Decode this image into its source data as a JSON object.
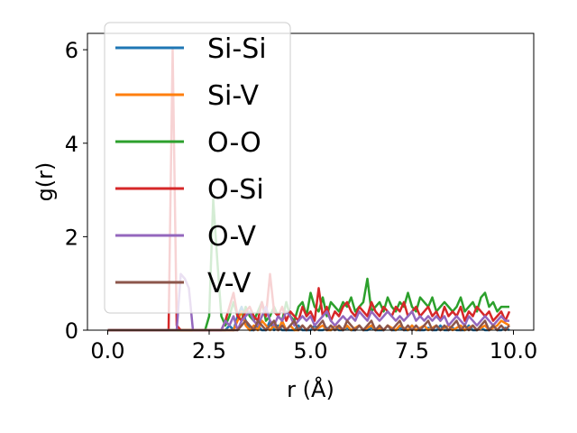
{
  "chart_data": {
    "type": "line",
    "xlabel": "r (Å)",
    "ylabel": "g(r)",
    "xlim": [
      -0.5,
      10.5
    ],
    "ylim": [
      0,
      6.35
    ],
    "grid": false,
    "legend_placement": "top-left",
    "x_ticks": [
      0.0,
      2.5,
      5.0,
      7.5,
      10.0
    ],
    "x_tick_labels": [
      "0.0",
      "2.5",
      "5.0",
      "7.5",
      "10.0"
    ],
    "y_ticks": [
      0,
      2,
      4,
      6
    ],
    "y_tick_labels": [
      "0",
      "2",
      "4",
      "6"
    ],
    "x": [
      0.0,
      0.1,
      0.2,
      0.3,
      0.4,
      0.5,
      0.6,
      0.7,
      0.8,
      0.9,
      1.0,
      1.1,
      1.2,
      1.3,
      1.4,
      1.5,
      1.6,
      1.7,
      1.8,
      1.9,
      2.0,
      2.1,
      2.2,
      2.3,
      2.4,
      2.5,
      2.6,
      2.7,
      2.8,
      2.9,
      3.0,
      3.1,
      3.2,
      3.3,
      3.4,
      3.5,
      3.6,
      3.7,
      3.8,
      3.9,
      4.0,
      4.1,
      4.2,
      4.3,
      4.4,
      4.5,
      4.6,
      4.7,
      4.8,
      4.9,
      5.0,
      5.1,
      5.2,
      5.3,
      5.4,
      5.5,
      5.6,
      5.7,
      5.8,
      5.9,
      6.0,
      6.1,
      6.2,
      6.3,
      6.4,
      6.5,
      6.6,
      6.7,
      6.8,
      6.9,
      7.0,
      7.1,
      7.2,
      7.3,
      7.4,
      7.5,
      7.6,
      7.7,
      7.8,
      7.9,
      8.0,
      8.1,
      8.2,
      8.3,
      8.4,
      8.5,
      8.6,
      8.7,
      8.8,
      8.9,
      9.0,
      9.1,
      9.2,
      9.3,
      9.4,
      9.5,
      9.6,
      9.7,
      9.8,
      9.9
    ],
    "series": [
      {
        "name": "Si-Si",
        "color": "#1f77b4",
        "values": [
          0,
          0,
          0,
          0,
          0,
          0,
          0,
          0,
          0,
          0,
          0,
          0,
          0,
          0,
          0,
          0,
          0,
          0,
          0,
          0,
          0,
          0,
          0,
          0,
          0,
          0,
          0,
          0,
          0,
          0,
          0.1,
          0.0,
          0.3,
          0.5,
          0.2,
          0.0,
          0.0,
          0.1,
          0.0,
          0.0,
          0.2,
          0.0,
          0.1,
          0.0,
          0.0,
          0.0,
          0.0,
          0.1,
          0.0,
          0.0,
          0.0,
          0.1,
          0.0,
          0.0,
          0.05,
          0.0,
          0.1,
          0.0,
          0.0,
          0.05,
          0.0,
          0.0,
          0.1,
          0.0,
          0.0,
          0.05,
          0.0,
          0.0,
          0.0,
          0.1,
          0.0,
          0.0,
          0.05,
          0.0,
          0.0,
          0.1,
          0.0,
          0.0,
          0.0,
          0.05,
          0.0,
          0.0,
          0.1,
          0.0,
          0.0,
          0.05,
          0.0,
          0.0,
          0.0,
          0.1,
          0.0,
          0.0,
          0.05,
          0.0,
          0.0,
          0.1,
          0.0,
          0.0,
          0.05,
          0.0
        ]
      },
      {
        "name": "Si-V",
        "color": "#ff7f0e",
        "values": [
          0,
          0,
          0,
          0,
          0,
          0,
          0,
          0,
          0,
          0,
          0,
          0,
          0,
          0,
          0,
          0,
          0,
          0,
          0,
          0,
          0,
          0,
          0,
          0,
          0,
          0,
          0,
          0,
          0,
          0,
          0,
          0,
          0.2,
          0.4,
          0.1,
          0.0,
          0.1,
          0.0,
          0.2,
          0.1,
          0.0,
          0.1,
          0.0,
          0.2,
          0.0,
          0.1,
          0.0,
          0.0,
          0.1,
          0.0,
          0.1,
          0.0,
          0.05,
          0.1,
          0.0,
          0.0,
          0.1,
          0.05,
          0.0,
          0.1,
          0.0,
          0.05,
          0.1,
          0.0,
          0.05,
          0.1,
          0.0,
          0.05,
          0.0,
          0.1,
          0.05,
          0.0,
          0.1,
          0.05,
          0.0,
          0.1,
          0.0,
          0.05,
          0.1,
          0.0,
          0.05,
          0.1,
          0.0,
          0.05,
          0.1,
          0.0,
          0.05,
          0.1,
          0.0,
          0.05,
          0.1,
          0.0,
          0.05,
          0.1,
          0.0,
          0.05,
          0.1,
          0.2,
          0.15,
          0.1
        ]
      },
      {
        "name": "O-O",
        "color": "#2ca02c",
        "values": [
          0,
          0,
          0,
          0,
          0,
          0,
          0,
          0,
          0,
          0,
          0,
          0,
          0,
          0,
          0,
          0,
          0,
          0,
          0,
          0,
          0,
          0,
          0,
          0,
          0,
          0.3,
          2.8,
          1.5,
          0.3,
          0.1,
          0.3,
          0.6,
          0.3,
          0.2,
          0.5,
          0.3,
          0.2,
          0.4,
          0.6,
          0.2,
          0.3,
          0.5,
          0.3,
          0.2,
          0.6,
          0.3,
          0.2,
          0.5,
          0.6,
          0.3,
          0.8,
          0.5,
          0.4,
          0.7,
          0.3,
          0.6,
          0.5,
          0.4,
          0.6,
          0.5,
          0.7,
          0.4,
          0.5,
          0.6,
          1.1,
          0.4,
          0.5,
          0.6,
          0.4,
          0.7,
          0.5,
          0.4,
          0.6,
          0.5,
          0.8,
          0.5,
          0.4,
          0.7,
          0.6,
          0.5,
          0.7,
          0.4,
          0.5,
          0.6,
          0.5,
          0.4,
          0.5,
          0.7,
          0.4,
          0.5,
          0.6,
          0.4,
          0.7,
          0.8,
          0.5,
          0.6,
          0.4,
          0.5,
          0.5,
          0.5
        ]
      },
      {
        "name": "O-Si",
        "color": "#d62728",
        "values": [
          0,
          0,
          0,
          0,
          0,
          0,
          0,
          0,
          0,
          0,
          0,
          0,
          0,
          0,
          0,
          0,
          6.0,
          0.1,
          0,
          0,
          0,
          0,
          0,
          0,
          0,
          0,
          0,
          0,
          0,
          0.2,
          0.5,
          0.8,
          0.3,
          0.2,
          0.4,
          0.5,
          0.3,
          0.2,
          0.6,
          0.3,
          1.2,
          0.4,
          0.3,
          0.5,
          0.2,
          0.4,
          0.3,
          0.2,
          0.5,
          0.3,
          0.4,
          0.2,
          0.9,
          0.3,
          0.5,
          0.2,
          0.4,
          0.3,
          0.5,
          0.6,
          0.4,
          0.3,
          0.5,
          0.4,
          0.3,
          0.6,
          0.4,
          0.3,
          0.5,
          0.4,
          0.3,
          0.5,
          0.4,
          0.6,
          0.3,
          0.4,
          0.5,
          0.3,
          0.4,
          0.5,
          0.3,
          0.4,
          0.2,
          0.5,
          0.3,
          0.4,
          0.3,
          0.5,
          0.2,
          0.4,
          0.3,
          0.5,
          0.4,
          0.3,
          0.4,
          0.2,
          0.3,
          0.4,
          0.2,
          0.4
        ]
      },
      {
        "name": "O-V",
        "color": "#9467bd",
        "values": [
          0,
          0,
          0,
          0,
          0,
          0,
          0,
          0,
          0,
          0,
          0,
          0,
          0,
          0,
          0,
          0,
          0,
          0,
          1.2,
          1.1,
          0.9,
          0,
          0,
          0,
          0,
          0,
          0,
          0,
          0,
          0.2,
          0.1,
          0.3,
          0.0,
          0.2,
          0.3,
          0.4,
          0.2,
          0.1,
          0.3,
          0.5,
          0.2,
          0.1,
          0.3,
          0.2,
          0.4,
          0.3,
          0.1,
          0.2,
          0.3,
          0.2,
          0.3,
          0.1,
          0.2,
          0.3,
          0.4,
          0.2,
          0.1,
          0.2,
          0.3,
          0.2,
          0.3,
          0.2,
          0.4,
          0.3,
          0.2,
          0.4,
          0.3,
          0.2,
          0.3,
          0.4,
          0.3,
          0.2,
          0.3,
          0.2,
          0.3,
          0.4,
          0.2,
          0.3,
          0.2,
          0.3,
          0.2,
          0.3,
          0.2,
          0.3,
          0.1,
          0.2,
          0.3,
          0.2,
          0.1,
          0.3,
          0.2,
          0.1,
          0.2,
          0.3,
          0.2,
          0.1,
          0.2,
          0.3,
          0.2,
          0.2
        ]
      },
      {
        "name": "V-V",
        "color": "#8c564b",
        "values": [
          0,
          0,
          0,
          0,
          0,
          0,
          0,
          0,
          0,
          0,
          0,
          0,
          0,
          0,
          0,
          0,
          0,
          0,
          0,
          0,
          0,
          0,
          0,
          0,
          0,
          0,
          0,
          0,
          0,
          0,
          0,
          0,
          0,
          0.1,
          0.2,
          0.1,
          0.0,
          0.2,
          0.1,
          0.0,
          0.1,
          0.2,
          0.0,
          0.1,
          0.0,
          0.1,
          0.2,
          0.0,
          0.1,
          0.0,
          0.1,
          0.0,
          0.1,
          0.2,
          0.0,
          0.1,
          0.0,
          0.1,
          0.0,
          0.2,
          0.1,
          0.0,
          0.1,
          0.0,
          0.1,
          0.2,
          0.0,
          0.1,
          0.0,
          0.1,
          0.0,
          0.1,
          0.2,
          0.0,
          0.1,
          0.0,
          0.1,
          0.0,
          0.1,
          0.2,
          0.0,
          0.1,
          0.0,
          0.1,
          0.0,
          0.1,
          0.2,
          0.0,
          0.1,
          0.0,
          0.1,
          0.0,
          0.1,
          0.2,
          0.0,
          0.1,
          0.0,
          0.1,
          0.0,
          0.1
        ]
      }
    ]
  }
}
